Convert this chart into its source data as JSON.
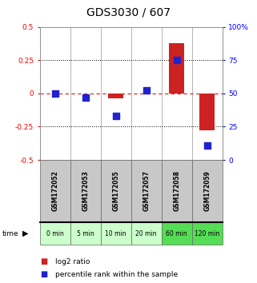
{
  "title": "GDS3030 / 607",
  "categories": [
    "GSM172052",
    "GSM172053",
    "GSM172055",
    "GSM172057",
    "GSM172058",
    "GSM172059"
  ],
  "time_labels": [
    "0 min",
    "5 min",
    "10 min",
    "20 min",
    "60 min",
    "120 min"
  ],
  "log2_ratio": [
    0.0,
    0.0,
    -0.04,
    0.0,
    0.38,
    -0.28
  ],
  "percentile_rank": [
    50,
    47,
    33,
    52,
    75,
    11
  ],
  "ylim_left": [
    -0.5,
    0.5
  ],
  "ylim_right": [
    0,
    100
  ],
  "yticks_left": [
    -0.5,
    -0.25,
    0,
    0.25,
    0.5
  ],
  "yticks_right": [
    0,
    25,
    50,
    75,
    100
  ],
  "bar_color": "#cc2222",
  "dot_color": "#2222cc",
  "hline_color": "#cc2222",
  "dotted_line_color": "#000000",
  "bg_color": "#ffffff",
  "header_bg": "#c8c8c8",
  "time_bg_light": "#ccffcc",
  "time_bg_dark": "#55dd55",
  "bar_width": 0.5,
  "dot_size": 28,
  "time_colors": [
    "#ccffcc",
    "#ccffcc",
    "#ccffcc",
    "#ccffcc",
    "#55dd55",
    "#55dd55"
  ]
}
